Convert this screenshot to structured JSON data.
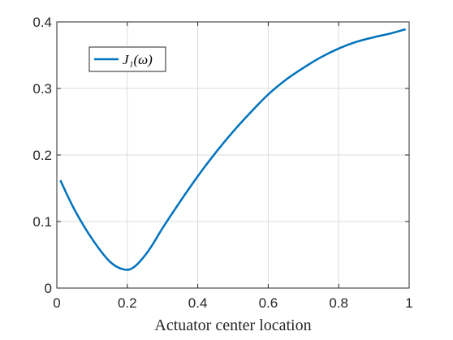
{
  "chart_data": {
    "type": "line",
    "title": "",
    "xlabel": "Actuator center location",
    "ylabel": "",
    "xlim": [
      0,
      1
    ],
    "ylim": [
      0,
      0.4
    ],
    "xticks": [
      "0",
      "0.2",
      "0.4",
      "0.6",
      "0.8",
      "1"
    ],
    "yticks": [
      "0",
      "0.1",
      "0.2",
      "0.3",
      "0.4"
    ],
    "grid": true,
    "legend_position": "top-left",
    "series": [
      {
        "name": "J₁(ω)",
        "color": "#0072BD",
        "x": [
          0.01,
          0.05,
          0.1,
          0.15,
          0.19,
          0.22,
          0.26,
          0.3,
          0.35,
          0.4,
          0.45,
          0.5,
          0.55,
          0.6,
          0.65,
          0.7,
          0.75,
          0.8,
          0.85,
          0.9,
          0.95,
          0.99
        ],
        "y": [
          0.162,
          0.118,
          0.074,
          0.04,
          0.028,
          0.032,
          0.056,
          0.09,
          0.13,
          0.168,
          0.203,
          0.235,
          0.264,
          0.291,
          0.313,
          0.331,
          0.347,
          0.36,
          0.37,
          0.377,
          0.383,
          0.389
        ]
      }
    ]
  }
}
